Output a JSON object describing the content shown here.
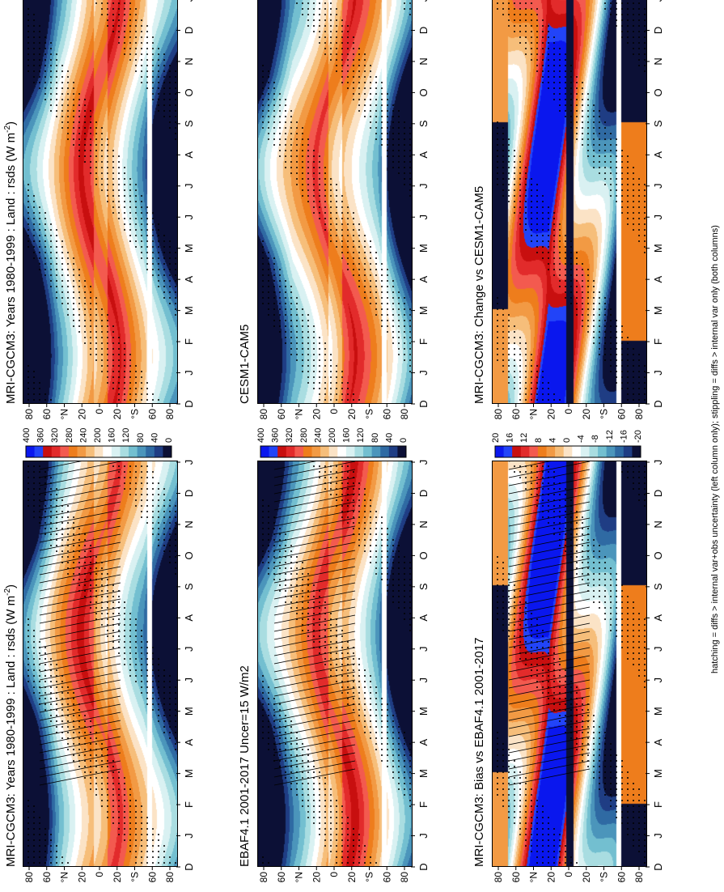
{
  "palettes": {
    "abs": [
      "#0a17ee",
      "#2244f8",
      "#c80f0f",
      "#e22b2b",
      "#f35a4f",
      "#ee7d1c",
      "#f29a44",
      "#f6be7a",
      "#fbe3c6",
      "#ffffff",
      "#d9f1f2",
      "#a9dde1",
      "#73bfd0",
      "#4b95bb",
      "#2f6aa3",
      "#1f3d84",
      "#0c1036"
    ],
    "diff": [
      "#0a17ee",
      "#2244f8",
      "#c80f0f",
      "#e22b2b",
      "#f35a4f",
      "#ee7d1c",
      "#f29a44",
      "#f6be7a",
      "#fbe3c6",
      "#ffffff",
      "#d9f1f2",
      "#a9dde1",
      "#73bfd0",
      "#4b95bb",
      "#2f6aa3",
      "#1f3d84",
      "#0c1036"
    ]
  },
  "months": [
    "D",
    "J",
    "F",
    "M",
    "A",
    "M",
    "J",
    "J",
    "A",
    "S",
    "O",
    "N",
    "D",
    "J"
  ],
  "lat_ticks": [
    "80",
    "60",
    "°N",
    "20",
    "0",
    "20",
    "°S",
    "60",
    "80"
  ],
  "panels": [
    {
      "title": "MRI-CGCM3: Years 1980-1999 : Land : rsds (W m",
      "title_sup": "-2",
      "title_end": ")",
      "kind": "abs",
      "cbar_ticks": [
        "400",
        "360",
        "320",
        "280",
        "240",
        "200",
        "160",
        "120",
        "80",
        "40",
        "0"
      ]
    },
    {
      "title": "MRI-CGCM3: Years 1980-1999 : Land : rsds (W m",
      "title_sup": "-2",
      "title_end": ")",
      "kind": "abs",
      "cbar_ticks": [
        "400",
        "360",
        "320",
        "280",
        "240",
        "200",
        "160",
        "120",
        "80",
        "40",
        "0"
      ]
    },
    {
      "title": "EBAF4.1 2001-2017 Uncer=15 W/m2",
      "title_sup": "",
      "title_end": "",
      "kind": "abs",
      "cbar_ticks": [
        "400",
        "360",
        "320",
        "280",
        "240",
        "200",
        "160",
        "120",
        "80",
        "40",
        "0"
      ]
    },
    {
      "title": "CESM1-CAM5",
      "title_sup": "",
      "title_end": "",
      "kind": "abs",
      "cbar_ticks": [
        "400",
        "360",
        "320",
        "280",
        "240",
        "200",
        "160",
        "120",
        "80",
        "40",
        "0"
      ]
    },
    {
      "title": "MRI-CGCM3: Bias vs EBAF4.1 2001-2017",
      "title_sup": "",
      "title_end": "",
      "kind": "diff",
      "cbar_ticks": [
        "20",
        "16",
        "12",
        "8",
        "4",
        "0",
        "-4",
        "-8",
        "-12",
        "-16",
        "-20"
      ]
    },
    {
      "title": "MRI-CGCM3: Change vs CESM1-CAM5",
      "title_sup": "",
      "title_end": "",
      "kind": "diff",
      "cbar_ticks": [
        "20",
        "16",
        "12",
        "8",
        "4",
        "0",
        "-4",
        "-8",
        "-12",
        "-16",
        "-20"
      ]
    }
  ],
  "footnote": "hatching = diffs > internal var+obs uncertainty (left column only); stippling = diffs > internal var only (both columns)",
  "chart_data": {
    "type": "heatmap",
    "x_categories": [
      "D",
      "J",
      "F",
      "M",
      "A",
      "M",
      "J",
      "J",
      "A",
      "S",
      "O",
      "N",
      "D",
      "J"
    ],
    "y_range": [
      -90,
      90
    ],
    "y_ticks": [
      "80",
      "60",
      "°N",
      "20",
      "0",
      "20",
      "°S",
      "60",
      "80"
    ],
    "colorbar_abs": {
      "min": 0,
      "max": 400,
      "ticks": [
        400,
        360,
        320,
        280,
        240,
        200,
        160,
        120,
        80,
        40,
        0
      ]
    },
    "colorbar_diff": {
      "min": -20,
      "max": 20,
      "ticks": [
        20,
        16,
        12,
        8,
        4,
        0,
        -4,
        -8,
        -12,
        -16,
        -20
      ]
    }
  }
}
